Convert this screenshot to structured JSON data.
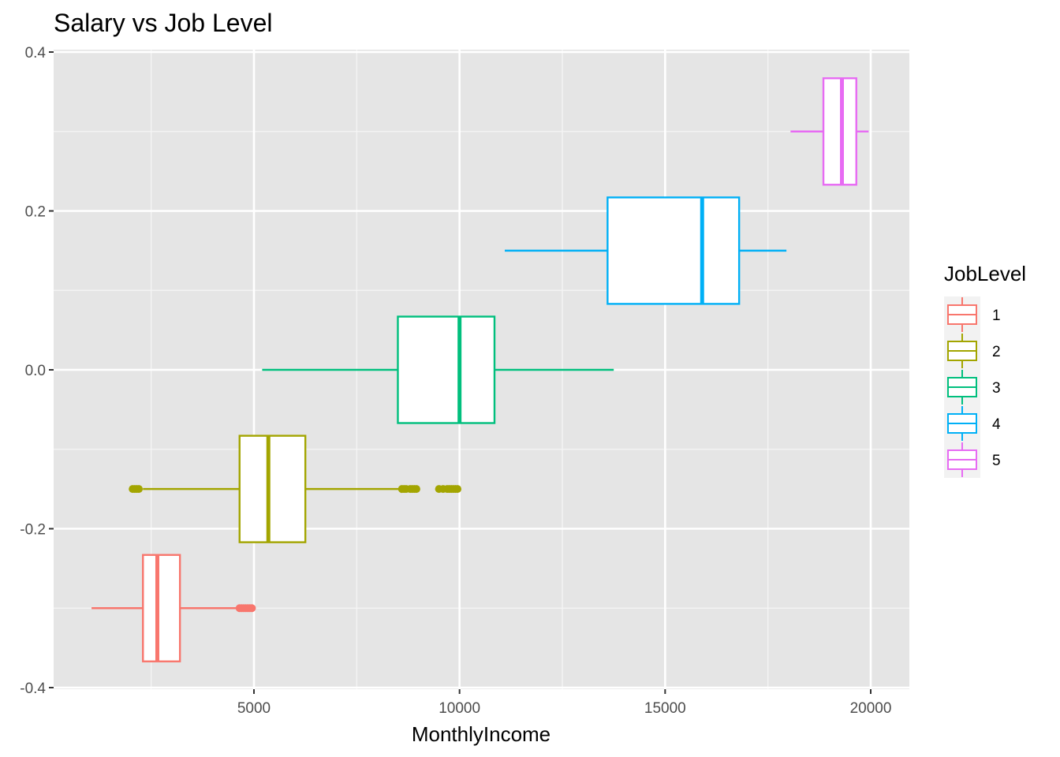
{
  "chart_data": {
    "type": "boxplot",
    "title": "Salary vs Job Level",
    "xlabel": "MonthlyIncome",
    "ylabel": "",
    "xlim": [
      1000,
      20950
    ],
    "ylim": [
      -0.4,
      0.4
    ],
    "x_ticks": [
      5000,
      10000,
      15000,
      20000
    ],
    "x_tick_labels": [
      "5000",
      "10000",
      "15000",
      "20000"
    ],
    "y_ticks": [
      -0.4,
      -0.2,
      0.0,
      0.2,
      0.4
    ],
    "y_tick_labels": [
      "-0.4",
      "-0.2",
      "0.0",
      "0.2",
      "0.4"
    ],
    "grid": true,
    "background": "#e5e5e5",
    "legend": {
      "title": "JobLevel",
      "position": "right"
    },
    "series": [
      {
        "name": "1",
        "color": "#f8766d",
        "y_center": -0.3,
        "y_half_width": 0.067,
        "whisker_low": 1050,
        "q1": 2300,
        "median": 2650,
        "q3": 3200,
        "whisker_high": 4600,
        "outliers": [
          4650,
          4700,
          4750,
          4800,
          4850,
          4900,
          4950
        ]
      },
      {
        "name": "2",
        "color": "#a3a500",
        "y_center": -0.15,
        "y_half_width": 0.067,
        "whisker_low": 2300,
        "q1": 4650,
        "median": 5350,
        "q3": 6250,
        "whisker_high": 8550,
        "outliers": [
          2050,
          2100,
          2150,
          2200,
          8600,
          8650,
          8700,
          8800,
          8850,
          8900,
          8950,
          9500,
          9600,
          9700,
          9750,
          9800,
          9850,
          9900,
          9950
        ]
      },
      {
        "name": "3",
        "color": "#00bf7d",
        "y_center": 0.0,
        "y_half_width": 0.067,
        "whisker_low": 5200,
        "q1": 8500,
        "median": 10000,
        "q3": 10850,
        "whisker_high": 13750,
        "outliers": []
      },
      {
        "name": "4",
        "color": "#00b0f6",
        "y_center": 0.15,
        "y_half_width": 0.067,
        "whisker_low": 11100,
        "q1": 13600,
        "median": 15900,
        "q3": 16800,
        "whisker_high": 17950,
        "outliers": []
      },
      {
        "name": "5",
        "color": "#e76bf3",
        "y_center": 0.3,
        "y_half_width": 0.067,
        "whisker_low": 18050,
        "q1": 18850,
        "median": 19300,
        "q3": 19650,
        "whisker_high": 19950,
        "outliers": []
      }
    ]
  }
}
